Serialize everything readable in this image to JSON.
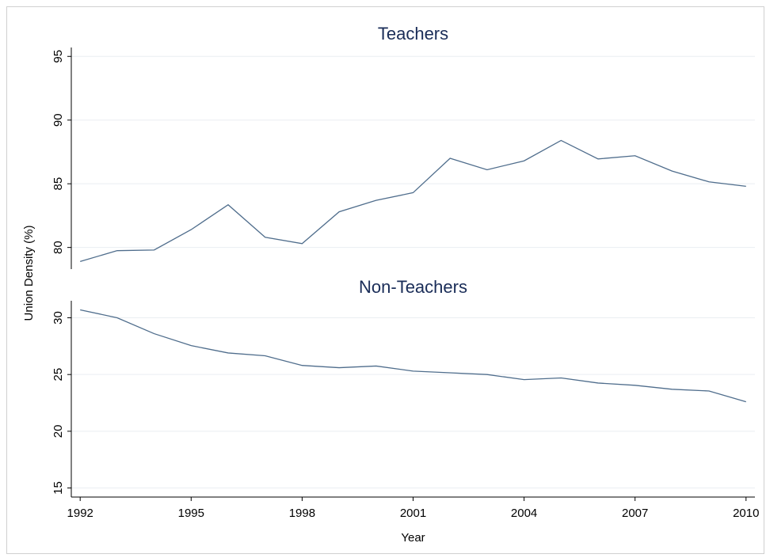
{
  "chart_data": [
    {
      "type": "line",
      "title": "Teachers",
      "ylabel": "Union Density (%)",
      "color": "#4f6d8c",
      "grid": true,
      "x": [
        1992,
        1993,
        1994,
        1995,
        1996,
        1997,
        1998,
        1999,
        2000,
        2001,
        2002,
        2003,
        2004,
        2005,
        2006,
        2007,
        2008,
        2009,
        2010
      ],
      "values": [
        78.9,
        79.75,
        79.8,
        81.4,
        83.35,
        80.8,
        80.3,
        82.8,
        83.7,
        84.3,
        87.0,
        86.1,
        86.8,
        88.4,
        86.95,
        87.2,
        86.0,
        85.15,
        84.8
      ],
      "xlim": [
        1991.76,
        2010.24
      ],
      "ylim": [
        78.3,
        95.7
      ],
      "yticks": [
        80,
        85,
        90,
        95
      ]
    },
    {
      "type": "line",
      "title": "Non-Teachers",
      "xlabel": "Year",
      "color": "#4f6d8c",
      "grid": true,
      "x": [
        1992,
        1993,
        1994,
        1995,
        1996,
        1997,
        1998,
        1999,
        2000,
        2001,
        2002,
        2003,
        2004,
        2005,
        2006,
        2007,
        2008,
        2009,
        2010
      ],
      "values": [
        30.7,
        30.0,
        28.6,
        27.55,
        26.9,
        26.65,
        25.8,
        25.6,
        25.75,
        25.3,
        25.15,
        25.0,
        24.55,
        24.7,
        24.25,
        24.05,
        23.7,
        23.55,
        22.6
      ],
      "xlim": [
        1991.76,
        2010.24
      ],
      "ylim": [
        14.2,
        31.5
      ],
      "yticks": [
        15,
        20,
        25,
        30
      ],
      "xticks": [
        1992,
        1995,
        1998,
        2001,
        2004,
        2007,
        2010
      ]
    }
  ]
}
